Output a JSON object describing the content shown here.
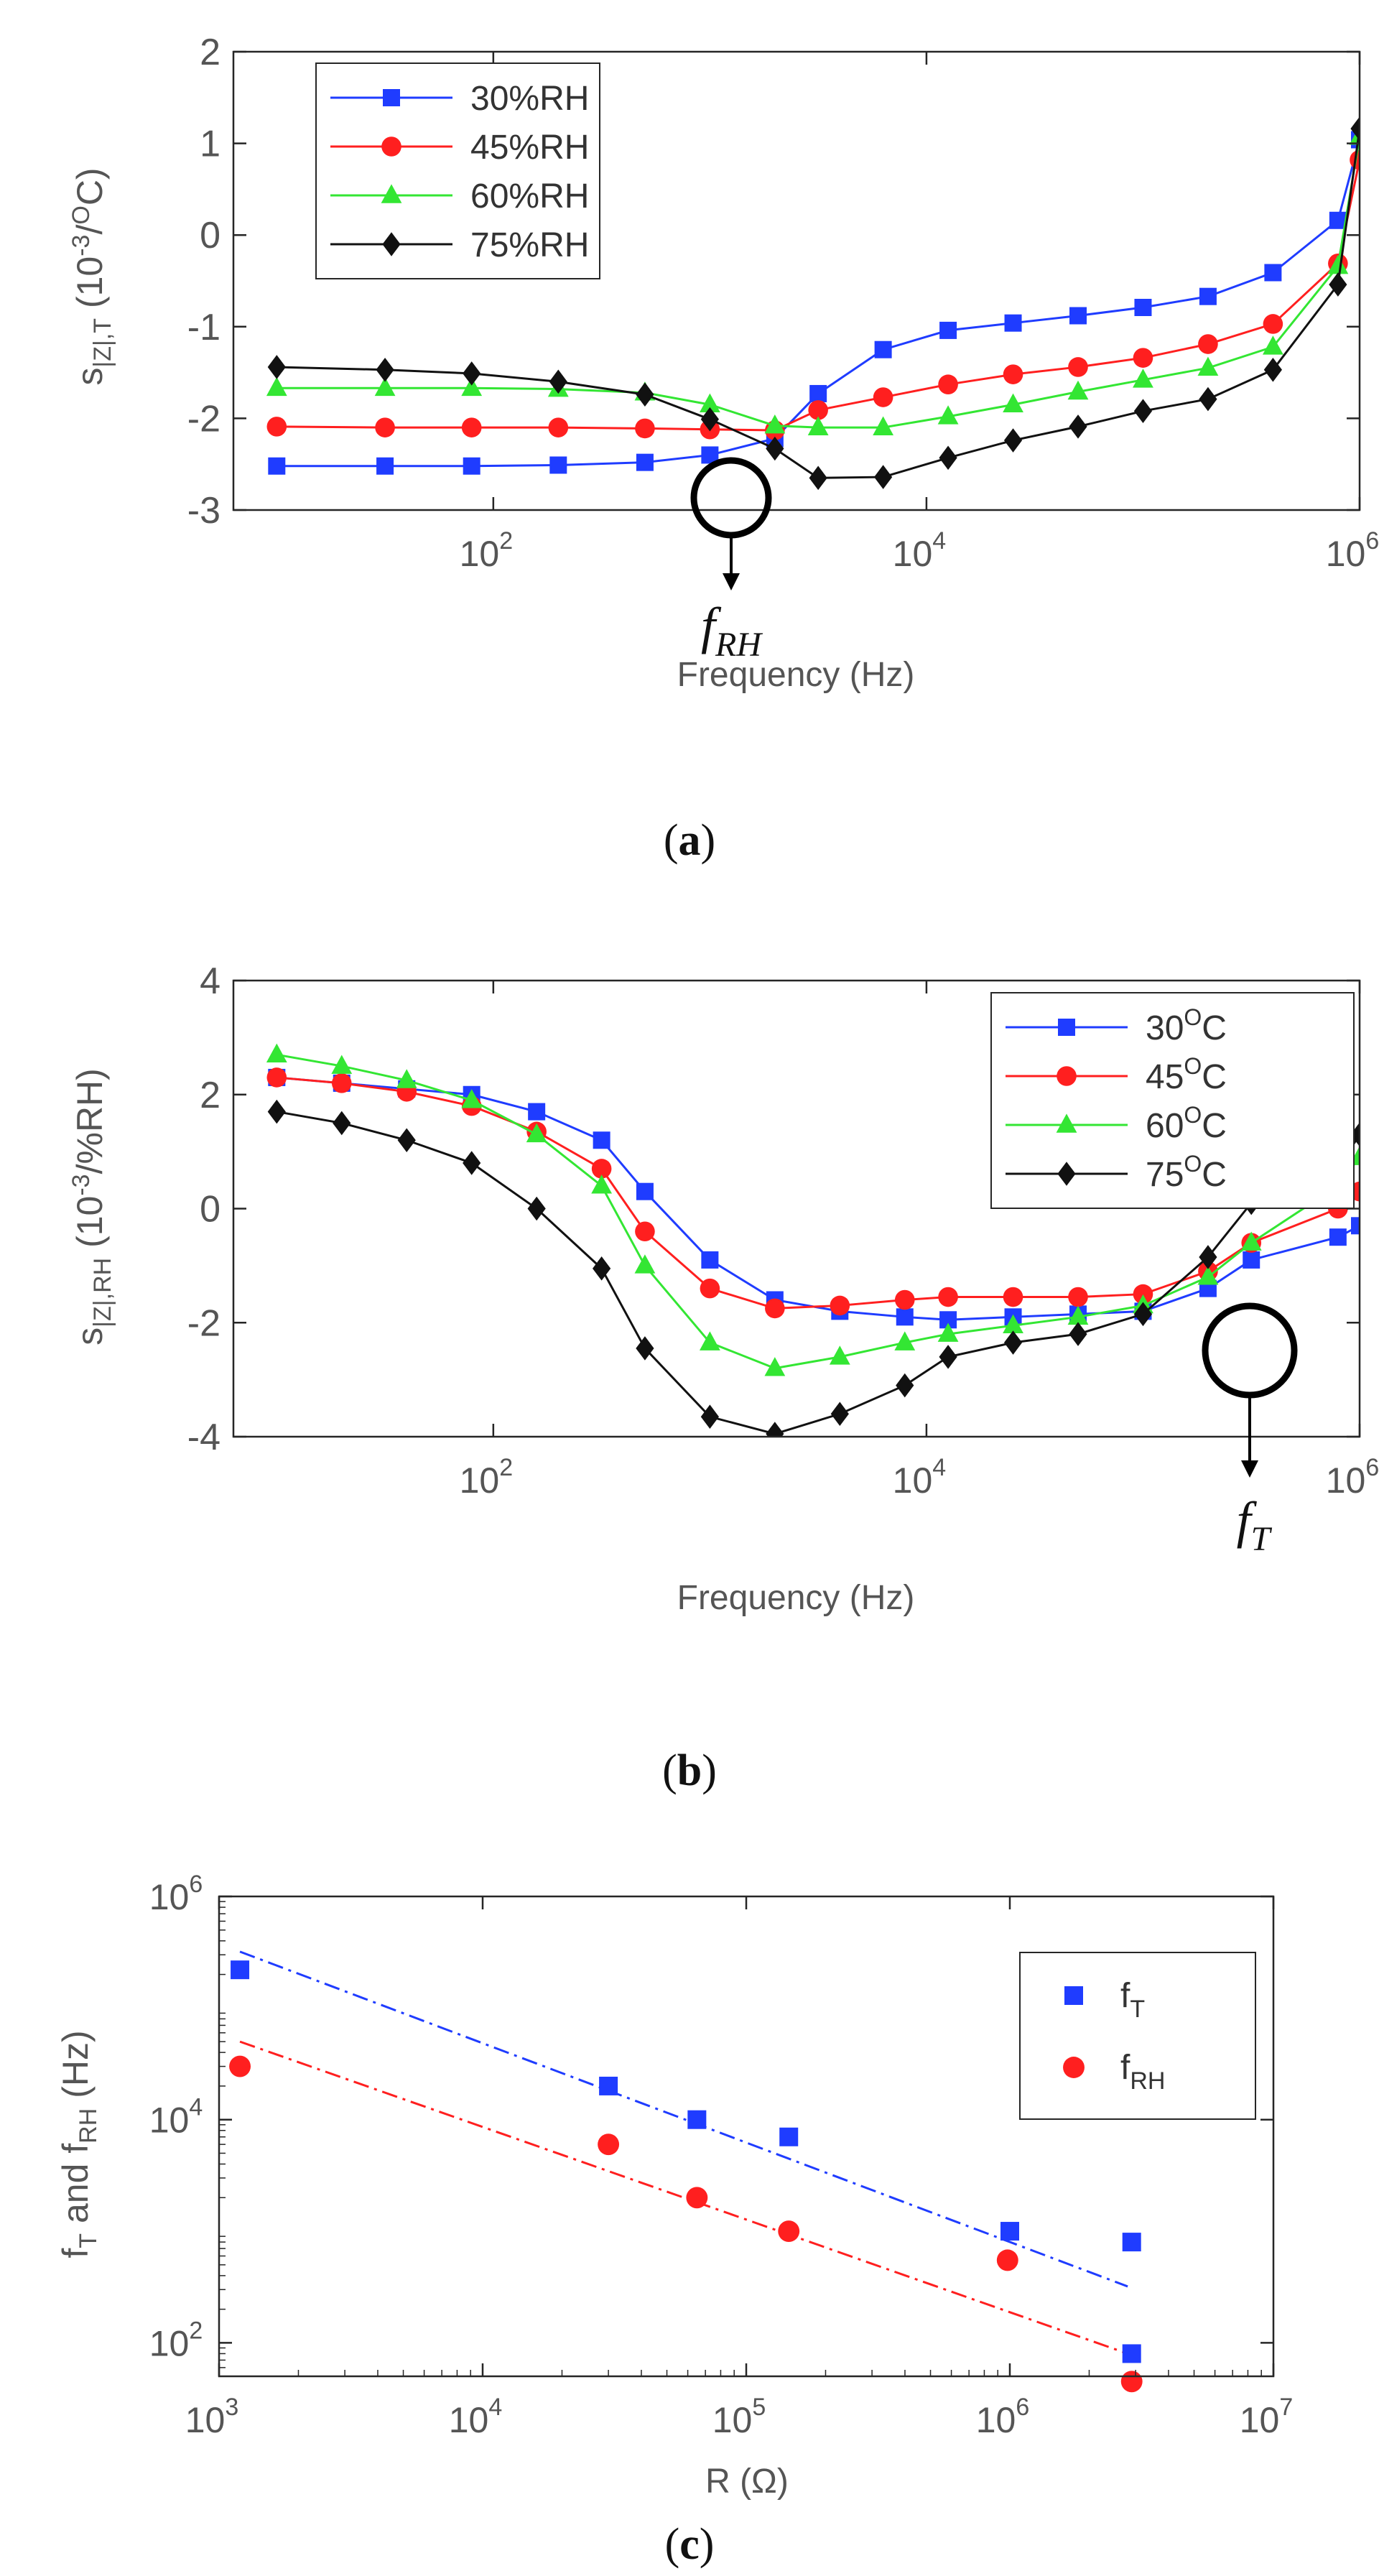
{
  "chart_data": [
    {
      "type": "line",
      "ylabel": "s|Z|,T (10-3/OC)",
      "ylabel_parts": {
        "main": "s",
        "sub": "|Z|,T",
        "unit_open": " (10",
        "unit_sup": "-3",
        "unit_mid": "/",
        "unit_sup2": "O",
        "unit_close": "C)"
      },
      "xlabel": "Frequency (Hz)",
      "xscale": "log",
      "xlim_log10": [
        0.8,
        6.0
      ],
      "ylim": [
        -3,
        2
      ],
      "xticks": [
        {
          "v": 2,
          "base": "10",
          "exp": "2"
        },
        {
          "v": 4,
          "base": "10",
          "exp": "4"
        },
        {
          "v": 6,
          "base": "10",
          "exp": "6"
        }
      ],
      "yticks": [
        "-3",
        "-2",
        "-1",
        "0",
        "1",
        "2"
      ],
      "legend_position": "top-left",
      "grid": false,
      "x_log10": [
        1.0,
        1.5,
        1.9,
        2.3,
        2.7,
        3.0,
        3.3,
        3.5,
        3.8,
        4.1,
        4.4,
        4.7,
        5.0,
        5.3,
        5.6,
        5.9,
        6.0
      ],
      "series": [
        {
          "name": "30%RH",
          "color": "#1f3cff",
          "marker": "square",
          "values": [
            -2.52,
            -2.52,
            -2.52,
            -2.51,
            -2.48,
            -2.4,
            -2.22,
            -1.73,
            -1.25,
            -1.04,
            -0.96,
            -0.88,
            -0.79,
            -0.67,
            -0.41,
            0.16,
            1.04
          ]
        },
        {
          "name": "45%RH",
          "color": "#ff1f1f",
          "marker": "circle",
          "values": [
            -2.09,
            -2.1,
            -2.1,
            -2.1,
            -2.11,
            -2.12,
            -2.13,
            -1.91,
            -1.77,
            -1.63,
            -1.52,
            -1.44,
            -1.34,
            -1.19,
            -0.97,
            -0.31,
            0.82
          ]
        },
        {
          "name": "60%RH",
          "color": "#33e633",
          "marker": "triangle",
          "values": [
            -1.67,
            -1.67,
            -1.67,
            -1.68,
            -1.72,
            -1.85,
            -2.08,
            -2.1,
            -2.1,
            -1.98,
            -1.85,
            -1.71,
            -1.58,
            -1.45,
            -1.22,
            -0.34,
            1.07
          ]
        },
        {
          "name": "75%RH",
          "color": "#111111",
          "marker": "diamond",
          "values": [
            -1.44,
            -1.47,
            -1.51,
            -1.6,
            -1.74,
            -2.01,
            -2.33,
            -2.65,
            -2.64,
            -2.43,
            -2.24,
            -2.09,
            -1.92,
            -1.79,
            -1.47,
            -0.54,
            1.16
          ]
        }
      ],
      "annotation": {
        "label": "f",
        "sub": "RH",
        "x_log10": 3.0,
        "y": -2.12
      }
    },
    {
      "type": "line",
      "ylabel": "s|Z|,RH (10-3/%RH)",
      "ylabel_parts": {
        "main": "s",
        "sub": "|Z|,RH",
        "unit_open": " (10",
        "unit_sup": "-3",
        "unit_close": "/%RH)"
      },
      "xlabel": "Frequency (Hz)",
      "xscale": "log",
      "xlim_log10": [
        0.8,
        6.0
      ],
      "ylim": [
        -4,
        4
      ],
      "xticks": [
        {
          "v": 2,
          "base": "10",
          "exp": "2"
        },
        {
          "v": 4,
          "base": "10",
          "exp": "4"
        },
        {
          "v": 6,
          "base": "10",
          "exp": "6"
        }
      ],
      "yticks": [
        "-4",
        "-2",
        "0",
        "2",
        "4"
      ],
      "legend_position": "top-right",
      "grid": false,
      "x_log10": [
        1.0,
        1.3,
        1.6,
        1.9,
        2.2,
        2.5,
        2.7,
        3.0,
        3.3,
        3.6,
        3.9,
        4.1,
        4.4,
        4.7,
        5.0,
        5.3,
        5.5,
        5.9,
        6.0
      ],
      "series": [
        {
          "name": "30",
          "unit_sup": "O",
          "unit": "C",
          "color": "#1f3cff",
          "marker": "square",
          "values": [
            2.3,
            2.2,
            2.1,
            2.0,
            1.7,
            1.2,
            0.3,
            -0.9,
            -1.6,
            -1.8,
            -1.9,
            -1.95,
            -1.9,
            -1.85,
            -1.8,
            -1.4,
            -0.9,
            -0.5,
            -0.3
          ]
        },
        {
          "name": "45",
          "unit_sup": "O",
          "unit": "C",
          "color": "#ff1f1f",
          "marker": "circle",
          "values": [
            2.3,
            2.2,
            2.05,
            1.8,
            1.35,
            0.7,
            -0.4,
            -1.4,
            -1.75,
            -1.7,
            -1.6,
            -1.55,
            -1.55,
            -1.55,
            -1.5,
            -1.1,
            -0.6,
            0.0,
            0.3
          ]
        },
        {
          "name": "60",
          "unit_sup": "O",
          "unit": "C",
          "color": "#33e633",
          "marker": "triangle",
          "values": [
            2.7,
            2.5,
            2.25,
            1.9,
            1.3,
            0.4,
            -1.0,
            -2.35,
            -2.8,
            -2.6,
            -2.35,
            -2.2,
            -2.05,
            -1.9,
            -1.7,
            -1.2,
            -0.6,
            0.4,
            0.9
          ]
        },
        {
          "name": "75",
          "unit_sup": "O",
          "unit": "C",
          "color": "#111111",
          "marker": "diamond",
          "values": [
            1.7,
            1.5,
            1.2,
            0.8,
            0.0,
            -1.05,
            -2.45,
            -3.65,
            -3.95,
            -3.6,
            -3.1,
            -2.6,
            -2.35,
            -2.2,
            -1.85,
            -0.85,
            0.1,
            0.7,
            1.3
          ]
        }
      ],
      "annotation": {
        "label": "f",
        "sub": "T",
        "x_log10": 5.0,
        "y": -1.6
      }
    },
    {
      "type": "scatter",
      "ylabel": "fT and fRH (Hz)",
      "ylabel_parts": {
        "p1": "f",
        "s1": "T",
        "p2": " and f",
        "s2": "RH",
        "p3": " (Hz)"
      },
      "xlabel": "R (Ω)",
      "xscale": "log",
      "yscale": "log",
      "xlim_log10": [
        3,
        7
      ],
      "ylim_log10": [
        1.7,
        6.0
      ],
      "xticks": [
        {
          "v": 3,
          "base": "10",
          "exp": "3"
        },
        {
          "v": 4,
          "base": "10",
          "exp": "4"
        },
        {
          "v": 5,
          "base": "10",
          "exp": "5"
        },
        {
          "v": 6,
          "base": "10",
          "exp": "6"
        },
        {
          "v": 7,
          "base": "10",
          "exp": "7"
        }
      ],
      "yticks": [
        {
          "v": 2,
          "base": "10",
          "exp": "2"
        },
        {
          "v": 4,
          "base": "10",
          "exp": "4"
        },
        {
          "v": 6,
          "base": "10",
          "exp": "6"
        }
      ],
      "legend_position": "top-right",
      "grid": false,
      "series": [
        {
          "name": "f",
          "sub": "T",
          "color": "#1f3cff",
          "marker": "square",
          "points": [
            [
              1200.0,
              220000.0
            ],
            [
              30000.0,
              20000.0
            ],
            [
              65000.0,
              10000.0
            ],
            [
              145000.0,
              7000.0
            ],
            [
              1000000.0,
              1000.0
            ],
            [
              2900000.0,
              80
            ],
            [
              2900000.0,
              800
            ]
          ],
          "fit": [
            [
              1200.0,
              320000.0
            ],
            [
              2800000.0,
              320
            ]
          ]
        },
        {
          "name": "f",
          "sub": "RH",
          "color": "#ff1f1f",
          "marker": "circle",
          "points": [
            [
              1200.0,
              30000.0
            ],
            [
              30000.0,
              6000.0
            ],
            [
              65000.0,
              2000.0
            ],
            [
              145000.0,
              1000.0
            ],
            [
              980000.0,
              550
            ],
            [
              2900000.0,
              45
            ]
          ],
          "fit": [
            [
              1200.0,
              50000.0
            ],
            [
              2800000.0,
              80
            ]
          ]
        }
      ]
    }
  ],
  "captions": [
    {
      "open": "(",
      "letter": "a",
      "close": ")"
    },
    {
      "open": "(",
      "letter": "b",
      "close": ")"
    },
    {
      "open": "(",
      "letter": "c",
      "close": ")"
    }
  ]
}
